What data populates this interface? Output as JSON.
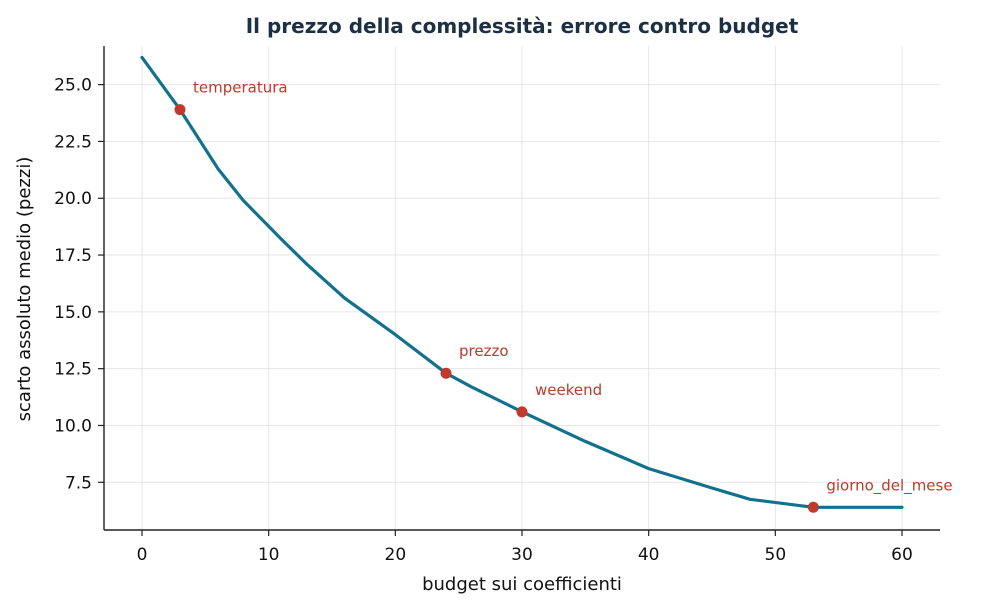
{
  "chart_data": {
    "type": "line",
    "title": "Il prezzo della complessità: errore contro budget",
    "xlabel": "budget sui coefficienti",
    "ylabel": "scarto assoluto medio (pezzi)",
    "xlim": [
      -3,
      63
    ],
    "ylim": [
      5.4,
      26.7
    ],
    "x_ticks": [
      0,
      10,
      20,
      30,
      40,
      50,
      60
    ],
    "y_ticks": [
      7.5,
      10.0,
      12.5,
      15.0,
      17.5,
      20.0,
      22.5,
      25.0
    ],
    "grid": true,
    "line_color": "#12718c",
    "point_color": "#c0392b",
    "series": [
      {
        "x": [
          0,
          3,
          6,
          8,
          11,
          13,
          16,
          20,
          24,
          26,
          30,
          35,
          40,
          45,
          48,
          53,
          60
        ],
        "y": [
          26.2,
          23.9,
          21.3,
          19.9,
          18.2,
          17.1,
          15.6,
          14.0,
          12.3,
          11.7,
          10.6,
          9.3,
          8.1,
          7.25,
          6.75,
          6.4,
          6.4
        ]
      }
    ],
    "annotations": [
      {
        "label": "temperatura",
        "x": 3,
        "y": 23.9
      },
      {
        "label": "prezzo",
        "x": 24,
        "y": 12.3
      },
      {
        "label": "weekend",
        "x": 30,
        "y": 10.6
      },
      {
        "label": "giorno_del_mese",
        "x": 53,
        "y": 6.4
      }
    ]
  }
}
